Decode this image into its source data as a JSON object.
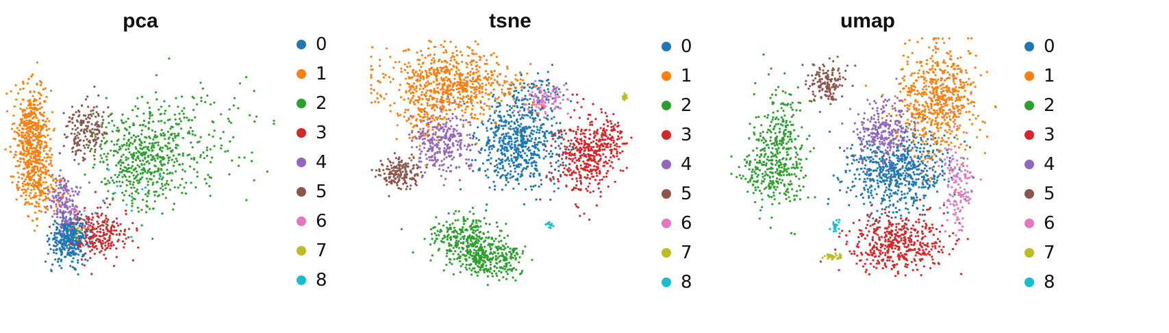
{
  "chart_data": [
    {
      "type": "scatter",
      "title": "pca",
      "legend": {
        "placement": "right",
        "entries": [
          "0",
          "1",
          "2",
          "3",
          "4",
          "5",
          "6",
          "7",
          "8"
        ]
      },
      "grid": false,
      "axes_visible": false,
      "xlim": [
        0,
        100
      ],
      "ylim": [
        0,
        100
      ],
      "series": [
        {
          "name": "0",
          "color": "#1f77b4",
          "clusters": [
            {
              "x": 24,
              "y": 20,
              "sx": 3.5,
              "sy": 4.5,
              "n": 420
            }
          ]
        },
        {
          "name": "1",
          "color": "#ff7f0e",
          "clusters": [
            {
              "x": 10,
              "y": 60,
              "sx": 3.2,
              "sy": 11,
              "n": 520
            },
            {
              "x": 13,
              "y": 40,
              "sx": 4,
              "sy": 5,
              "n": 160
            }
          ]
        },
        {
          "name": "2",
          "color": "#2ca02c",
          "clusters": [
            {
              "x": 52,
              "y": 52,
              "sx": 10,
              "sy": 10,
              "n": 520
            },
            {
              "x": 70,
              "y": 62,
              "sx": 14,
              "sy": 10,
              "n": 120
            }
          ]
        },
        {
          "name": "3",
          "color": "#d62728",
          "clusters": [
            {
              "x": 35,
              "y": 22,
              "sx": 5,
              "sy": 5,
              "n": 220
            }
          ]
        },
        {
          "name": "4",
          "color": "#9467bd",
          "clusters": [
            {
              "x": 22,
              "y": 35,
              "sx": 3,
              "sy": 5,
              "n": 150
            }
          ]
        },
        {
          "name": "5",
          "color": "#8c564b",
          "clusters": [
            {
              "x": 30,
              "y": 62,
              "sx": 3.5,
              "sy": 6,
              "n": 170
            }
          ]
        },
        {
          "name": "6",
          "color": "#e377c2",
          "clusters": [
            {
              "x": 26,
              "y": 30,
              "sx": 2,
              "sy": 2,
              "n": 12
            }
          ]
        },
        {
          "name": "7",
          "color": "#bcbd22",
          "clusters": [
            {
              "x": 28,
              "y": 22,
              "sx": 2,
              "sy": 2,
              "n": 10
            }
          ]
        },
        {
          "name": "8",
          "color": "#17becf",
          "clusters": [
            {
              "x": 44,
              "y": 40,
              "sx": 8,
              "sy": 8,
              "n": 12
            }
          ]
        }
      ]
    },
    {
      "type": "scatter",
      "title": "tsne",
      "legend": {
        "placement": "right",
        "entries": [
          "0",
          "1",
          "2",
          "3",
          "4",
          "5",
          "6",
          "7",
          "8"
        ]
      },
      "grid": false,
      "axes_visible": false,
      "xlim": [
        0,
        100
      ],
      "ylim": [
        0,
        100
      ],
      "series": [
        {
          "name": "0",
          "color": "#1f77b4",
          "clusters": [
            {
              "x": 57,
              "y": 58,
              "sx": 8,
              "sy": 9,
              "n": 620
            },
            {
              "x": 62,
              "y": 78,
              "sx": 6,
              "sy": 4,
              "n": 90
            }
          ]
        },
        {
          "name": "1",
          "color": "#ff7f0e",
          "clusters": [
            {
              "x": 30,
              "y": 82,
              "sx": 13,
              "sy": 7,
              "n": 700
            },
            {
              "x": 20,
              "y": 68,
              "sx": 5,
              "sy": 6,
              "n": 90
            }
          ]
        },
        {
          "name": "2",
          "color": "#2ca02c",
          "clusters": [
            {
              "x": 36,
              "y": 20,
              "sx": 7,
              "sy": 5,
              "n": 280
            },
            {
              "x": 45,
              "y": 12,
              "sx": 6,
              "sy": 4,
              "n": 280
            }
          ]
        },
        {
          "name": "3",
          "color": "#d62728",
          "clusters": [
            {
              "x": 82,
              "y": 53,
              "sx": 6,
              "sy": 8,
              "n": 380
            },
            {
              "x": 91,
              "y": 60,
              "sx": 3,
              "sy": 4,
              "n": 90
            }
          ]
        },
        {
          "name": "4",
          "color": "#9467bd",
          "clusters": [
            {
              "x": 27,
              "y": 58,
              "sx": 6,
              "sy": 6,
              "n": 280
            }
          ]
        },
        {
          "name": "5",
          "color": "#8c564b",
          "clusters": [
            {
              "x": 11,
              "y": 46,
              "sx": 3.5,
              "sy": 3,
              "n": 170
            }
          ]
        },
        {
          "name": "6",
          "color": "#e377c2",
          "clusters": [
            {
              "x": 67,
              "y": 76,
              "sx": 4,
              "sy": 3,
              "n": 90
            }
          ]
        },
        {
          "name": "7",
          "color": "#bcbd22",
          "clusters": [
            {
              "x": 97,
              "y": 77,
              "sx": 0.6,
              "sy": 0.8,
              "n": 18
            }
          ]
        },
        {
          "name": "8",
          "color": "#17becf",
          "clusters": [
            {
              "x": 68,
              "y": 26,
              "sx": 1,
              "sy": 0.8,
              "n": 12
            }
          ]
        }
      ]
    },
    {
      "type": "scatter",
      "title": "umap",
      "legend": {
        "placement": "right",
        "entries": [
          "0",
          "1",
          "2",
          "3",
          "4",
          "5",
          "6",
          "7",
          "8"
        ]
      },
      "grid": false,
      "axes_visible": false,
      "xlim": [
        0,
        100
      ],
      "ylim": [
        0,
        100
      ],
      "series": [
        {
          "name": "0",
          "color": "#1f77b4",
          "clusters": [
            {
              "x": 62,
              "y": 47,
              "sx": 10,
              "sy": 8,
              "n": 650
            }
          ]
        },
        {
          "name": "1",
          "color": "#ff7f0e",
          "clusters": [
            {
              "x": 78,
              "y": 75,
              "sx": 8,
              "sy": 11,
              "n": 620
            }
          ]
        },
        {
          "name": "2",
          "color": "#2ca02c",
          "clusters": [
            {
              "x": 18,
              "y": 55,
              "sx": 5,
              "sy": 12,
              "n": 360
            },
            {
              "x": 10,
              "y": 46,
              "sx": 4,
              "sy": 5,
              "n": 80
            }
          ]
        },
        {
          "name": "3",
          "color": "#d62728",
          "clusters": [
            {
              "x": 63,
              "y": 18,
              "sx": 9,
              "sy": 6,
              "n": 450
            }
          ]
        },
        {
          "name": "4",
          "color": "#9467bd",
          "clusters": [
            {
              "x": 57,
              "y": 63,
              "sx": 5,
              "sy": 6,
              "n": 260
            }
          ]
        },
        {
          "name": "5",
          "color": "#8c564b",
          "clusters": [
            {
              "x": 36,
              "y": 82,
              "sx": 3.5,
              "sy": 4,
              "n": 150
            }
          ]
        },
        {
          "name": "6",
          "color": "#e377c2",
          "clusters": [
            {
              "x": 86,
              "y": 42,
              "sx": 3,
              "sy": 8,
              "n": 150
            }
          ]
        },
        {
          "name": "7",
          "color": "#bcbd22",
          "clusters": [
            {
              "x": 39,
              "y": 13,
              "sx": 2,
              "sy": 0.8,
              "n": 30
            }
          ]
        },
        {
          "name": "8",
          "color": "#17becf",
          "clusters": [
            {
              "x": 40,
              "y": 25,
              "sx": 1.2,
              "sy": 1.5,
              "n": 20
            }
          ]
        }
      ]
    }
  ]
}
